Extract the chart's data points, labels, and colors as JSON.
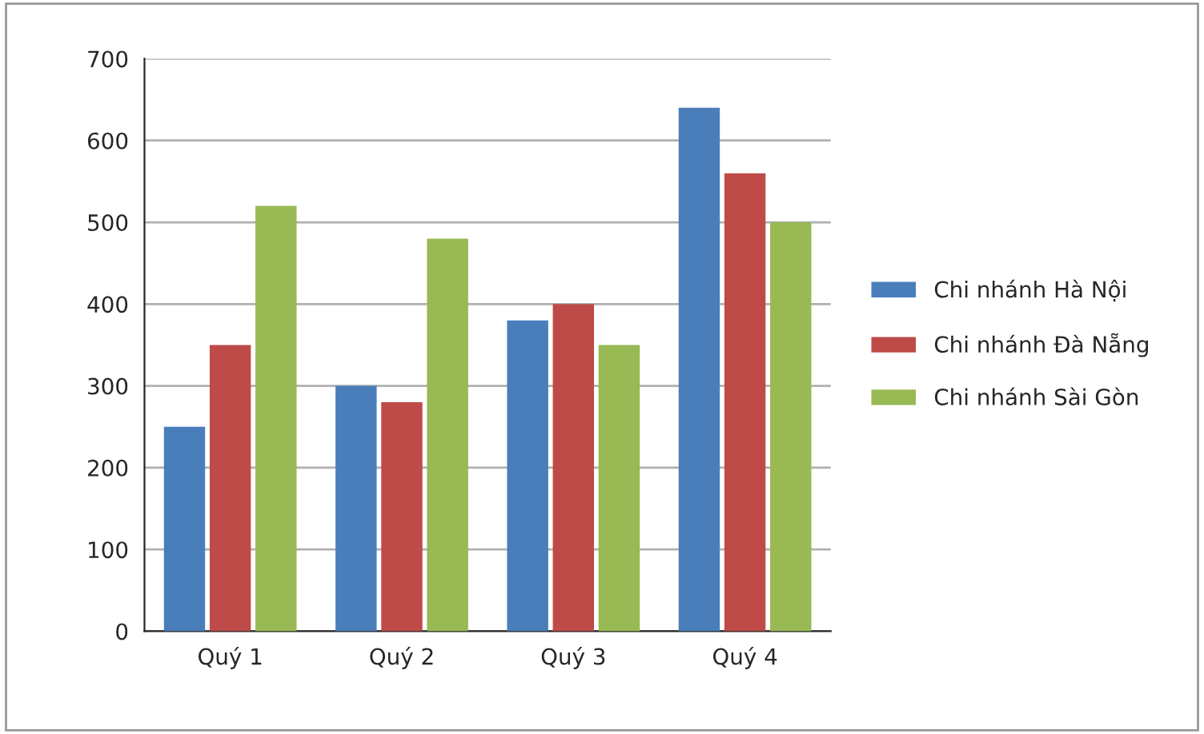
{
  "chart_data": {
    "type": "bar",
    "categories": [
      "Quý 1",
      "Quý 2",
      "Quý 3",
      "Quý 4"
    ],
    "series": [
      {
        "name": "Chi nhánh Hà Nội",
        "color": "#4a7ebb",
        "values": [
          250,
          300,
          380,
          640
        ]
      },
      {
        "name": "Chi nhánh Đà Nẵng",
        "color": "#be4b48",
        "values": [
          350,
          280,
          400,
          560
        ]
      },
      {
        "name": "Chi nhánh Sài Gòn",
        "color": "#98b954",
        "values": [
          520,
          480,
          350,
          500
        ]
      }
    ],
    "ylim": [
      0,
      700
    ],
    "yticks": [
      0,
      100,
      200,
      300,
      400,
      500,
      600,
      700
    ],
    "grid": "y",
    "legend": "right"
  }
}
